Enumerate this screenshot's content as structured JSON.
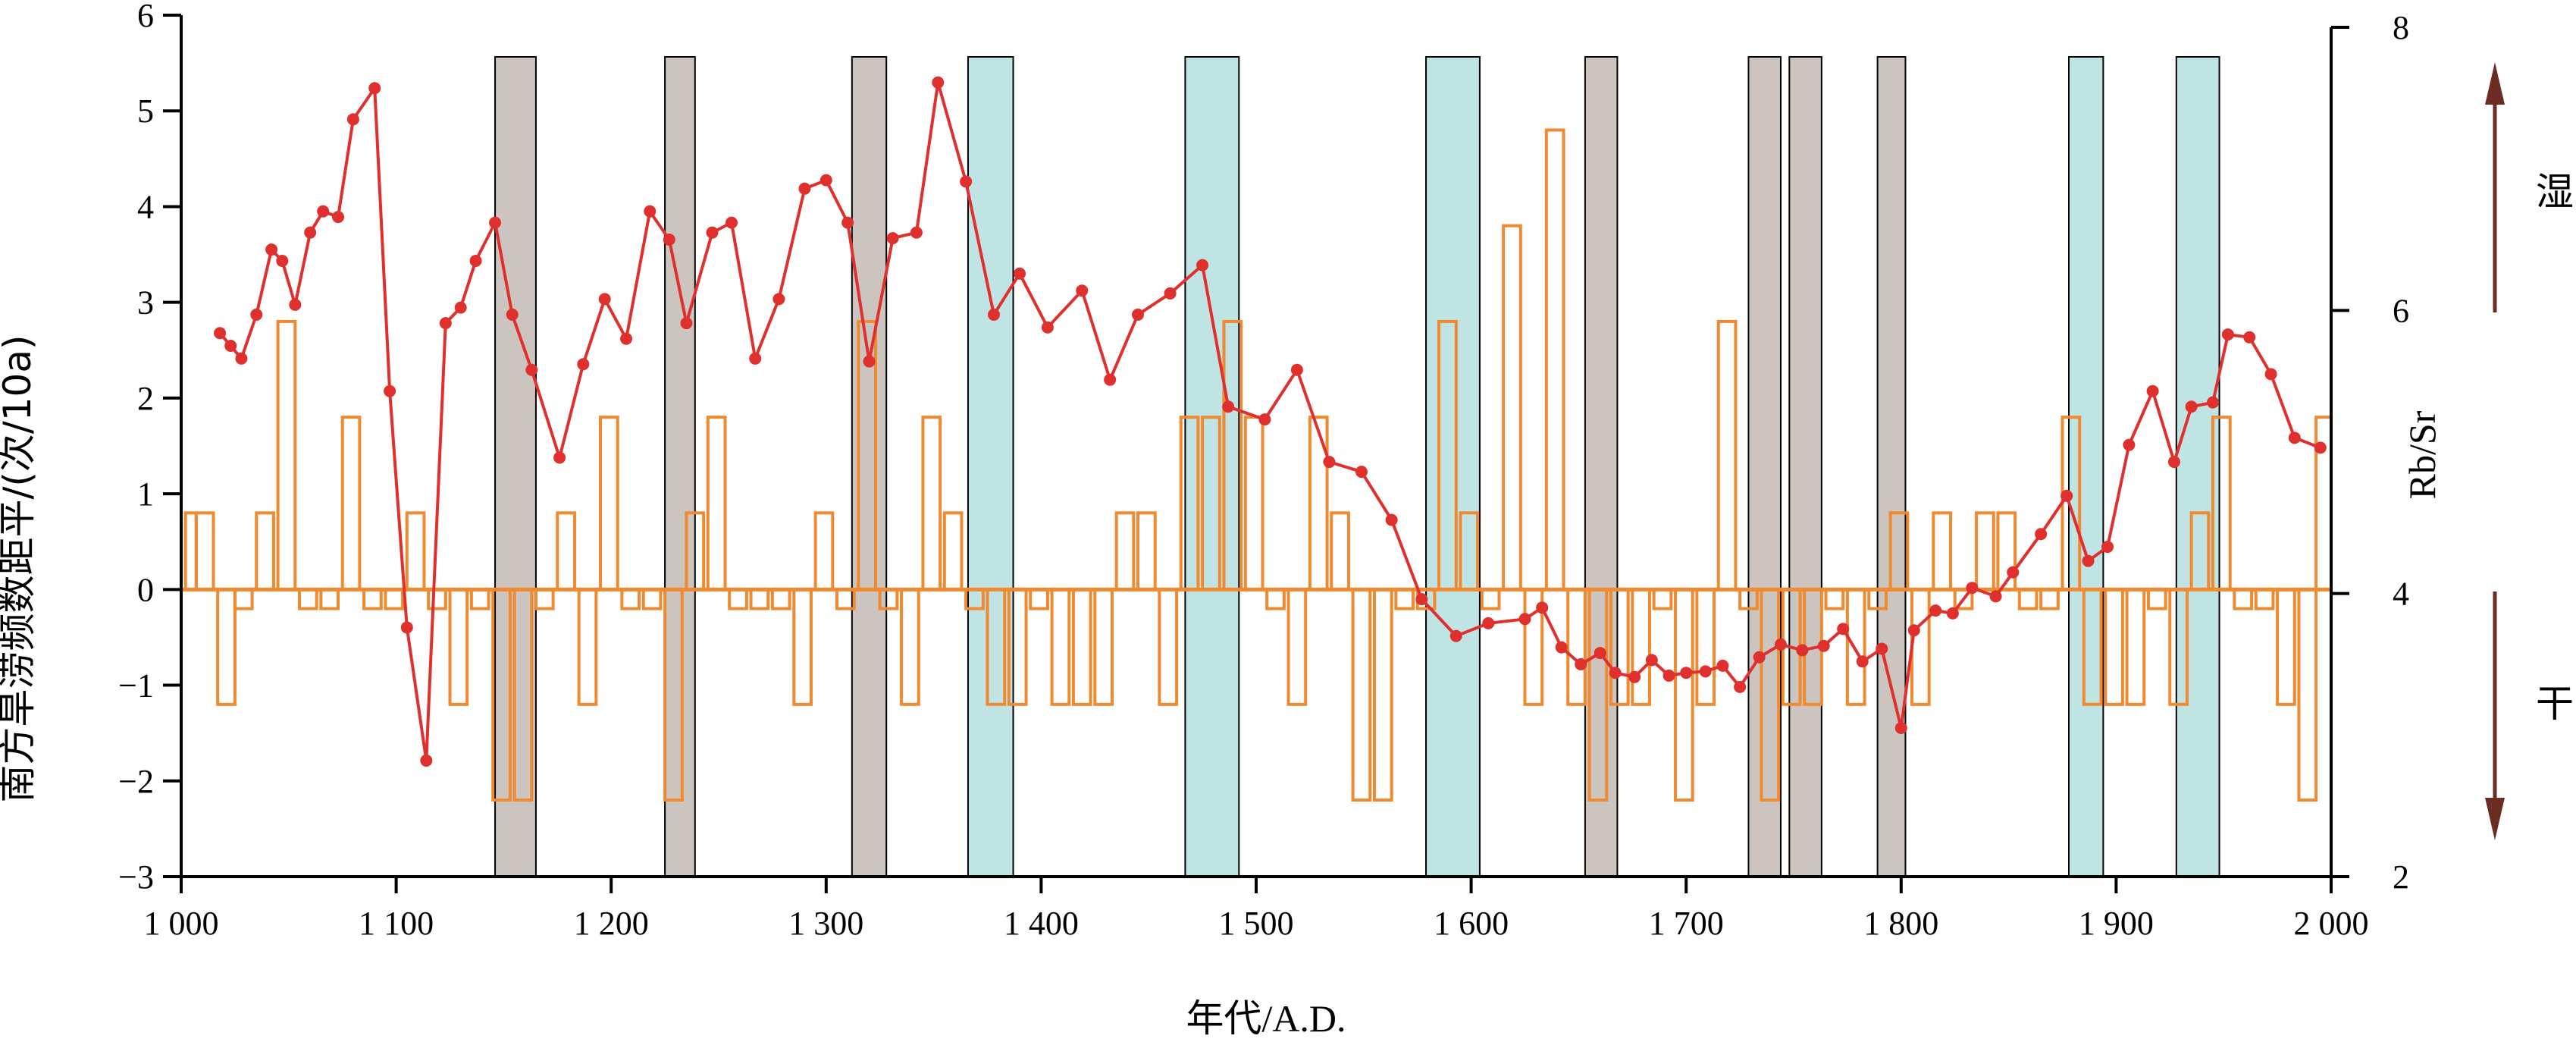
{
  "chart_data": {
    "type": "line",
    "xlabel": "年代/A.D.",
    "ylabel_left": "南方旱涝频数距平/(次/10a)",
    "ylabel_right": "Rb/Sr",
    "xlim": [
      1000,
      2000
    ],
    "ylim_left": [
      -3,
      6
    ],
    "ylim_right": [
      2,
      8
    ],
    "x_ticks": [
      1000,
      1100,
      1200,
      1300,
      1400,
      1500,
      1600,
      1700,
      1800,
      1900,
      2000
    ],
    "x_tick_labels": [
      "1 000",
      "1 100",
      "1 200",
      "1 300",
      "1 400",
      "1 500",
      "1 600",
      "1 700",
      "1 800",
      "1 900",
      "2 000"
    ],
    "y_left_ticks": [
      -3,
      -2,
      -1,
      0,
      1,
      2,
      3,
      4,
      5,
      6
    ],
    "y_left_tick_labels": [
      "−3",
      "−2",
      "−1",
      "0",
      "1",
      "2",
      "3",
      "4",
      "5",
      "6"
    ],
    "y_right_ticks": [
      2,
      4,
      6,
      8
    ],
    "y_right_tick_labels": [
      "2",
      "4",
      "6",
      "8"
    ],
    "side_labels": {
      "wet": "湿",
      "dry": "干"
    },
    "colors": {
      "rbsr": "#e0302e",
      "flood": "#f08a30",
      "gray_band": "#cbc4bf",
      "cyan_band": "#c0e3e3",
      "arrow": "#6b2c24"
    },
    "bands_gray": [
      [
        1146,
        1165
      ],
      [
        1225,
        1239
      ],
      [
        1312,
        1328
      ],
      [
        1653,
        1668
      ],
      [
        1729,
        1744
      ],
      [
        1748,
        1763
      ],
      [
        1789,
        1802
      ]
    ],
    "bands_cyan": [
      [
        1366,
        1387
      ],
      [
        1467,
        1492
      ],
      [
        1579,
        1604
      ],
      [
        1878,
        1894
      ],
      [
        1928,
        1948
      ]
    ],
    "flood_bars": [
      [
        1002,
        1007,
        0.8
      ],
      [
        1007,
        1015,
        0.8
      ],
      [
        1017,
        1025,
        -1.2
      ],
      [
        1025,
        1033,
        -0.2
      ],
      [
        1035,
        1043,
        0.8
      ],
      [
        1045,
        1053,
        2.8
      ],
      [
        1055,
        1063,
        -0.2
      ],
      [
        1065,
        1073,
        -0.2
      ],
      [
        1075,
        1083,
        1.8
      ],
      [
        1085,
        1093,
        -0.2
      ],
      [
        1095,
        1103,
        -0.2
      ],
      [
        1105,
        1113,
        0.8
      ],
      [
        1115,
        1123,
        -0.2
      ],
      [
        1125,
        1133,
        -1.2
      ],
      [
        1135,
        1143,
        -0.2
      ],
      [
        1145,
        1153,
        -2.2
      ],
      [
        1155,
        1163,
        -2.2
      ],
      [
        1165,
        1173,
        -0.2
      ],
      [
        1175,
        1183,
        0.8
      ],
      [
        1185,
        1193,
        -1.2
      ],
      [
        1195,
        1203,
        1.8
      ],
      [
        1205,
        1213,
        -0.2
      ],
      [
        1215,
        1223,
        -0.2
      ],
      [
        1225,
        1233,
        -2.2
      ],
      [
        1235,
        1243,
        0.8
      ],
      [
        1245,
        1253,
        1.8
      ],
      [
        1255,
        1263,
        -0.2
      ],
      [
        1265,
        1273,
        -0.2
      ],
      [
        1275,
        1283,
        -0.2
      ],
      [
        1285,
        1293,
        -1.2
      ],
      [
        1295,
        1303,
        0.8
      ],
      [
        1305,
        1313,
        -0.2
      ],
      [
        1315,
        1323,
        2.8
      ],
      [
        1325,
        1333,
        -0.2
      ],
      [
        1335,
        1343,
        -1.2
      ],
      [
        1345,
        1353,
        1.8
      ],
      [
        1355,
        1363,
        0.8
      ],
      [
        1365,
        1373,
        -0.2
      ],
      [
        1375,
        1383,
        -1.2
      ],
      [
        1385,
        1393,
        -1.2
      ],
      [
        1395,
        1403,
        -0.2
      ],
      [
        1405,
        1413,
        -1.2
      ],
      [
        1415,
        1423,
        -1.2
      ],
      [
        1425,
        1433,
        -1.2
      ],
      [
        1435,
        1443,
        0.8
      ],
      [
        1445,
        1453,
        0.8
      ],
      [
        1455,
        1463,
        -1.2
      ],
      [
        1465,
        1473,
        1.8
      ],
      [
        1475,
        1483,
        1.8
      ],
      [
        1485,
        1493,
        2.8
      ],
      [
        1495,
        1503,
        1.8
      ],
      [
        1505,
        1513,
        -0.2
      ],
      [
        1515,
        1523,
        -1.2
      ],
      [
        1525,
        1533,
        1.8
      ],
      [
        1535,
        1543,
        0.8
      ],
      [
        1545,
        1553,
        -2.2
      ],
      [
        1555,
        1563,
        -2.2
      ],
      [
        1565,
        1573,
        -0.2
      ],
      [
        1575,
        1583,
        -0.2
      ],
      [
        1585,
        1593,
        2.8
      ],
      [
        1595,
        1603,
        0.8
      ],
      [
        1605,
        1613,
        -0.2
      ],
      [
        1615,
        1623,
        3.8
      ],
      [
        1625,
        1633,
        -1.2
      ],
      [
        1635,
        1643,
        4.8
      ],
      [
        1645,
        1653,
        -1.2
      ],
      [
        1655,
        1663,
        -2.2
      ],
      [
        1665,
        1673,
        -1.2
      ],
      [
        1675,
        1683,
        -1.2
      ],
      [
        1685,
        1693,
        -0.2
      ],
      [
        1695,
        1703,
        -2.2
      ],
      [
        1705,
        1713,
        -1.2
      ],
      [
        1715,
        1723,
        2.8
      ],
      [
        1725,
        1733,
        -0.2
      ],
      [
        1735,
        1743,
        -2.2
      ],
      [
        1745,
        1753,
        -1.2
      ],
      [
        1755,
        1763,
        -1.2
      ],
      [
        1765,
        1773,
        -0.2
      ],
      [
        1775,
        1783,
        -1.2
      ],
      [
        1785,
        1793,
        -0.2
      ],
      [
        1795,
        1803,
        0.8
      ],
      [
        1805,
        1813,
        -1.2
      ],
      [
        1815,
        1823,
        0.8
      ],
      [
        1825,
        1833,
        -0.2
      ],
      [
        1835,
        1843,
        0.8
      ],
      [
        1845,
        1853,
        0.8
      ],
      [
        1855,
        1863,
        -0.2
      ],
      [
        1865,
        1873,
        -0.2
      ],
      [
        1875,
        1883,
        1.8
      ],
      [
        1885,
        1893,
        -1.2
      ],
      [
        1895,
        1903,
        -1.2
      ],
      [
        1905,
        1913,
        -1.2
      ],
      [
        1915,
        1923,
        -0.2
      ],
      [
        1925,
        1933,
        -1.2
      ],
      [
        1935,
        1943,
        0.8
      ],
      [
        1945,
        1953,
        1.8
      ],
      [
        1955,
        1963,
        -0.2
      ],
      [
        1965,
        1973,
        -0.2
      ],
      [
        1975,
        1983,
        -1.2
      ],
      [
        1985,
        1993,
        -2.2
      ],
      [
        1993,
        2000,
        1.8
      ]
    ],
    "rbsr_x": [
      1018,
      1023,
      1028,
      1035,
      1042,
      1047,
      1053,
      1060,
      1066,
      1073,
      1080,
      1090,
      1097,
      1105,
      1114,
      1123,
      1130,
      1137,
      1146,
      1154,
      1163,
      1176,
      1187,
      1197,
      1207,
      1218,
      1227,
      1235,
      1247,
      1256,
      1267,
      1278,
      1290,
      1300,
      1310,
      1320,
      1331,
      1342,
      1352,
      1365,
      1378,
      1390,
      1403,
      1419,
      1432,
      1445,
      1460,
      1475,
      1487,
      1504,
      1519,
      1534,
      1549,
      1563,
      1577,
      1593,
      1608,
      1625,
      1633,
      1642,
      1651,
      1660,
      1667,
      1676,
      1684,
      1692,
      1700,
      1709,
      1717,
      1725,
      1734,
      1744,
      1754,
      1764,
      1773,
      1782,
      1791,
      1800,
      1806,
      1816,
      1824,
      1833,
      1844,
      1852,
      1865,
      1877,
      1887,
      1896,
      1906,
      1917,
      1927,
      1935,
      1945,
      1952,
      1962,
      1972,
      1983,
      1995
    ],
    "rbsr": [
      5.84,
      5.75,
      5.66,
      5.97,
      6.43,
      6.35,
      6.04,
      6.55,
      6.7,
      6.66,
      7.35,
      7.57,
      5.43,
      3.76,
      2.82,
      5.91,
      6.02,
      6.35,
      6.62,
      5.97,
      5.58,
      4.96,
      5.62,
      6.08,
      5.8,
      6.7,
      6.5,
      5.91,
      6.55,
      6.62,
      5.66,
      6.08,
      6.86,
      6.92,
      6.62,
      5.64,
      6.51,
      6.55,
      7.61,
      6.91,
      5.97,
      6.26,
      5.88,
      6.14,
      5.51,
      5.97,
      6.12,
      6.32,
      5.32,
      5.23,
      5.58,
      4.93,
      4.86,
      4.52,
      3.96,
      3.7,
      3.79,
      3.82,
      3.9,
      3.62,
      3.5,
      3.58,
      3.44,
      3.41,
      3.53,
      3.42,
      3.44,
      3.45,
      3.49,
      3.34,
      3.55,
      3.64,
      3.6,
      3.63,
      3.75,
      3.52,
      3.61,
      3.05,
      3.74,
      3.88,
      3.86,
      4.04,
      3.98,
      4.15,
      4.42,
      4.69,
      4.23,
      4.33,
      5.05,
      5.43,
      4.93,
      5.32,
      5.35,
      5.83,
      5.81,
      5.55,
      5.1,
      5.03
    ]
  }
}
